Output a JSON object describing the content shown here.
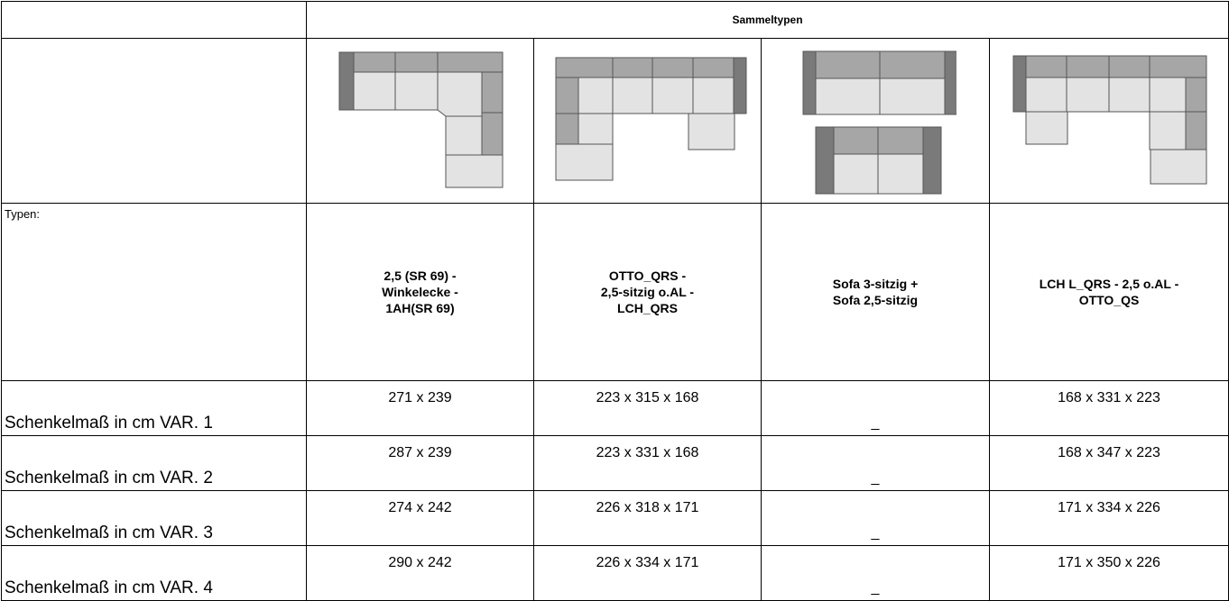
{
  "header": {
    "title": "Sammeltypen"
  },
  "types_label": "Typen:",
  "types": [
    {
      "name": "2,5 (SR 69) -\nWinkelecke -\n1AH(SR 69)",
      "diagram": "l-shape-corner-sofa-diagram"
    },
    {
      "name": "OTTO_QRS -\n2,5-sitzig o.AL -\nLCH_QRS",
      "diagram": "u-shape-sofa-diagram"
    },
    {
      "name": "Sofa 3-sitzig +\nSofa 2,5-sitzig",
      "diagram": "two-sofas-diagram"
    },
    {
      "name": "LCH L_QRS - 2,5 o.AL -\nOTTO_QS",
      "diagram": "u-shape-chaise-sofa-diagram"
    }
  ],
  "variants": [
    {
      "label": "Schenkelmaß in cm VAR. 1",
      "values": [
        "271 x 239",
        "223 x 315 x 168",
        "_",
        "168 x 331 x 223"
      ]
    },
    {
      "label": "Schenkelmaß in cm VAR. 2",
      "values": [
        "287 x 239",
        "223 x 331 x 168",
        "_",
        "168 x 347 x 223"
      ]
    },
    {
      "label": "Schenkelmaß in cm VAR. 3",
      "values": [
        "274 x 242",
        "226 x 318 x 171",
        "_",
        "171 x 334 x 226"
      ]
    },
    {
      "label": "Schenkelmaß in cm VAR. 4",
      "values": [
        "290 x 242",
        "226 x 334 x 171",
        "_",
        "171 x 350 x 226"
      ]
    }
  ],
  "colors": {
    "seat": "#e3e3e3",
    "back": "#a6a6a6",
    "arm": "#7a7a7a",
    "outline": "#555555"
  }
}
